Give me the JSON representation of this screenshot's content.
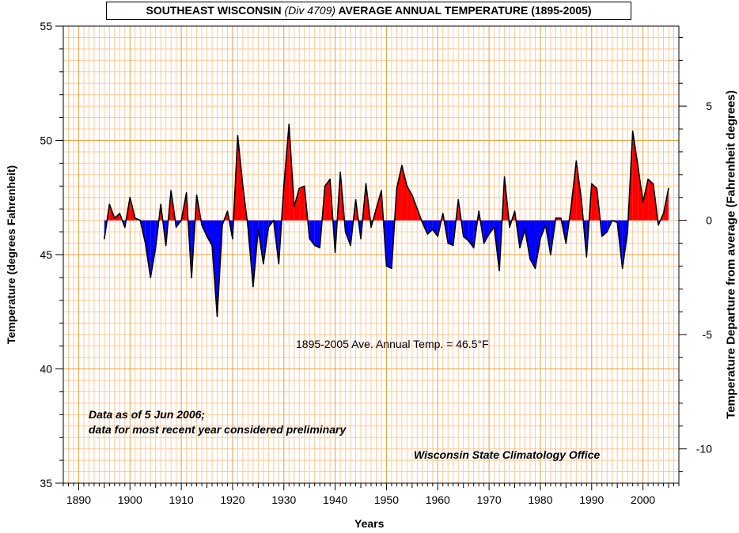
{
  "chart_data": {
    "type": "area",
    "title": {
      "prefix": "SOUTHEAST WISCONSIN",
      "division": "(Div 4709)",
      "suffix": "AVERAGE  ANNUAL TEMPERATURE (1895-2005)"
    },
    "xlabel": "Years",
    "ylabel": "Temperature  (degrees Fahrenheit)",
    "y2label": "Temperature Departure from average (Fahrenheit degrees)",
    "xlim": [
      1887,
      2007
    ],
    "ylim": [
      35,
      55
    ],
    "y2lim": [
      -11.5,
      8.5
    ],
    "xticks": [
      "1890",
      "1900",
      "1910",
      "1920",
      "1930",
      "1940",
      "1950",
      "1960",
      "1970",
      "1980",
      "1990",
      "2000"
    ],
    "yticks": [
      "35",
      "40",
      "45",
      "50",
      "55"
    ],
    "y2ticks": [
      "-10",
      "-5",
      "0",
      "5"
    ],
    "baseline": 46.5,
    "grid": true,
    "colors": {
      "above": "#ff0000",
      "below": "#0000ff",
      "grid_major": "#e8a040",
      "grid_minor": "#ffc898",
      "line": "#000000"
    },
    "x": [
      1895,
      1896,
      1897,
      1898,
      1899,
      1900,
      1901,
      1902,
      1903,
      1904,
      1905,
      1906,
      1907,
      1908,
      1909,
      1910,
      1911,
      1912,
      1913,
      1914,
      1915,
      1916,
      1917,
      1918,
      1919,
      1920,
      1921,
      1922,
      1923,
      1924,
      1925,
      1926,
      1927,
      1928,
      1929,
      1930,
      1931,
      1932,
      1933,
      1934,
      1935,
      1936,
      1937,
      1938,
      1939,
      1940,
      1941,
      1942,
      1943,
      1944,
      1945,
      1946,
      1947,
      1948,
      1949,
      1950,
      1951,
      1952,
      1953,
      1954,
      1955,
      1956,
      1957,
      1958,
      1959,
      1960,
      1961,
      1962,
      1963,
      1964,
      1965,
      1966,
      1967,
      1968,
      1969,
      1970,
      1971,
      1972,
      1973,
      1974,
      1975,
      1976,
      1977,
      1978,
      1979,
      1980,
      1981,
      1982,
      1983,
      1984,
      1985,
      1986,
      1987,
      1988,
      1989,
      1990,
      1991,
      1992,
      1993,
      1994,
      1995,
      1996,
      1997,
      1998,
      1999,
      2000,
      2001,
      2002,
      2003,
      2004,
      2005
    ],
    "values": [
      45.7,
      47.2,
      46.6,
      46.8,
      46.2,
      47.5,
      46.6,
      46.5,
      45.5,
      44.0,
      45.3,
      47.2,
      45.4,
      47.8,
      46.2,
      46.5,
      47.7,
      44.0,
      47.6,
      46.3,
      45.8,
      45.4,
      42.3,
      46.3,
      46.9,
      45.7,
      50.2,
      48.0,
      46.2,
      43.6,
      46.1,
      44.6,
      46.2,
      46.5,
      44.6,
      48.0,
      50.7,
      47.1,
      47.9,
      48.0,
      45.7,
      45.4,
      45.3,
      48.0,
      48.3,
      45.1,
      48.6,
      46.0,
      45.4,
      47.4,
      45.7,
      48.1,
      46.2,
      47.0,
      47.8,
      44.5,
      44.4,
      47.9,
      48.9,
      48.0,
      47.6,
      47.0,
      46.4,
      45.9,
      46.1,
      45.8,
      46.8,
      45.5,
      45.4,
      47.4,
      45.8,
      45.6,
      45.3,
      46.9,
      45.5,
      45.9,
      46.2,
      44.3,
      48.4,
      46.2,
      46.9,
      45.3,
      46.1,
      44.8,
      44.4,
      45.7,
      46.3,
      45.0,
      46.6,
      46.6,
      45.5,
      47.1,
      49.1,
      47.4,
      44.9,
      48.1,
      47.9,
      45.8,
      46.0,
      46.5,
      46.4,
      44.4,
      46.0,
      50.4,
      48.9,
      47.3,
      48.3,
      48.1,
      46.3,
      46.8,
      47.9
    ]
  },
  "annotations": {
    "average": "1895-2005 Ave. Annual Temp. = 46.5°F",
    "data_note_1": "Data as of 5 Jun 2006;",
    "data_note_2": "data for most recent year considered preliminary",
    "source": "Wisconsin State Climatology Office"
  }
}
